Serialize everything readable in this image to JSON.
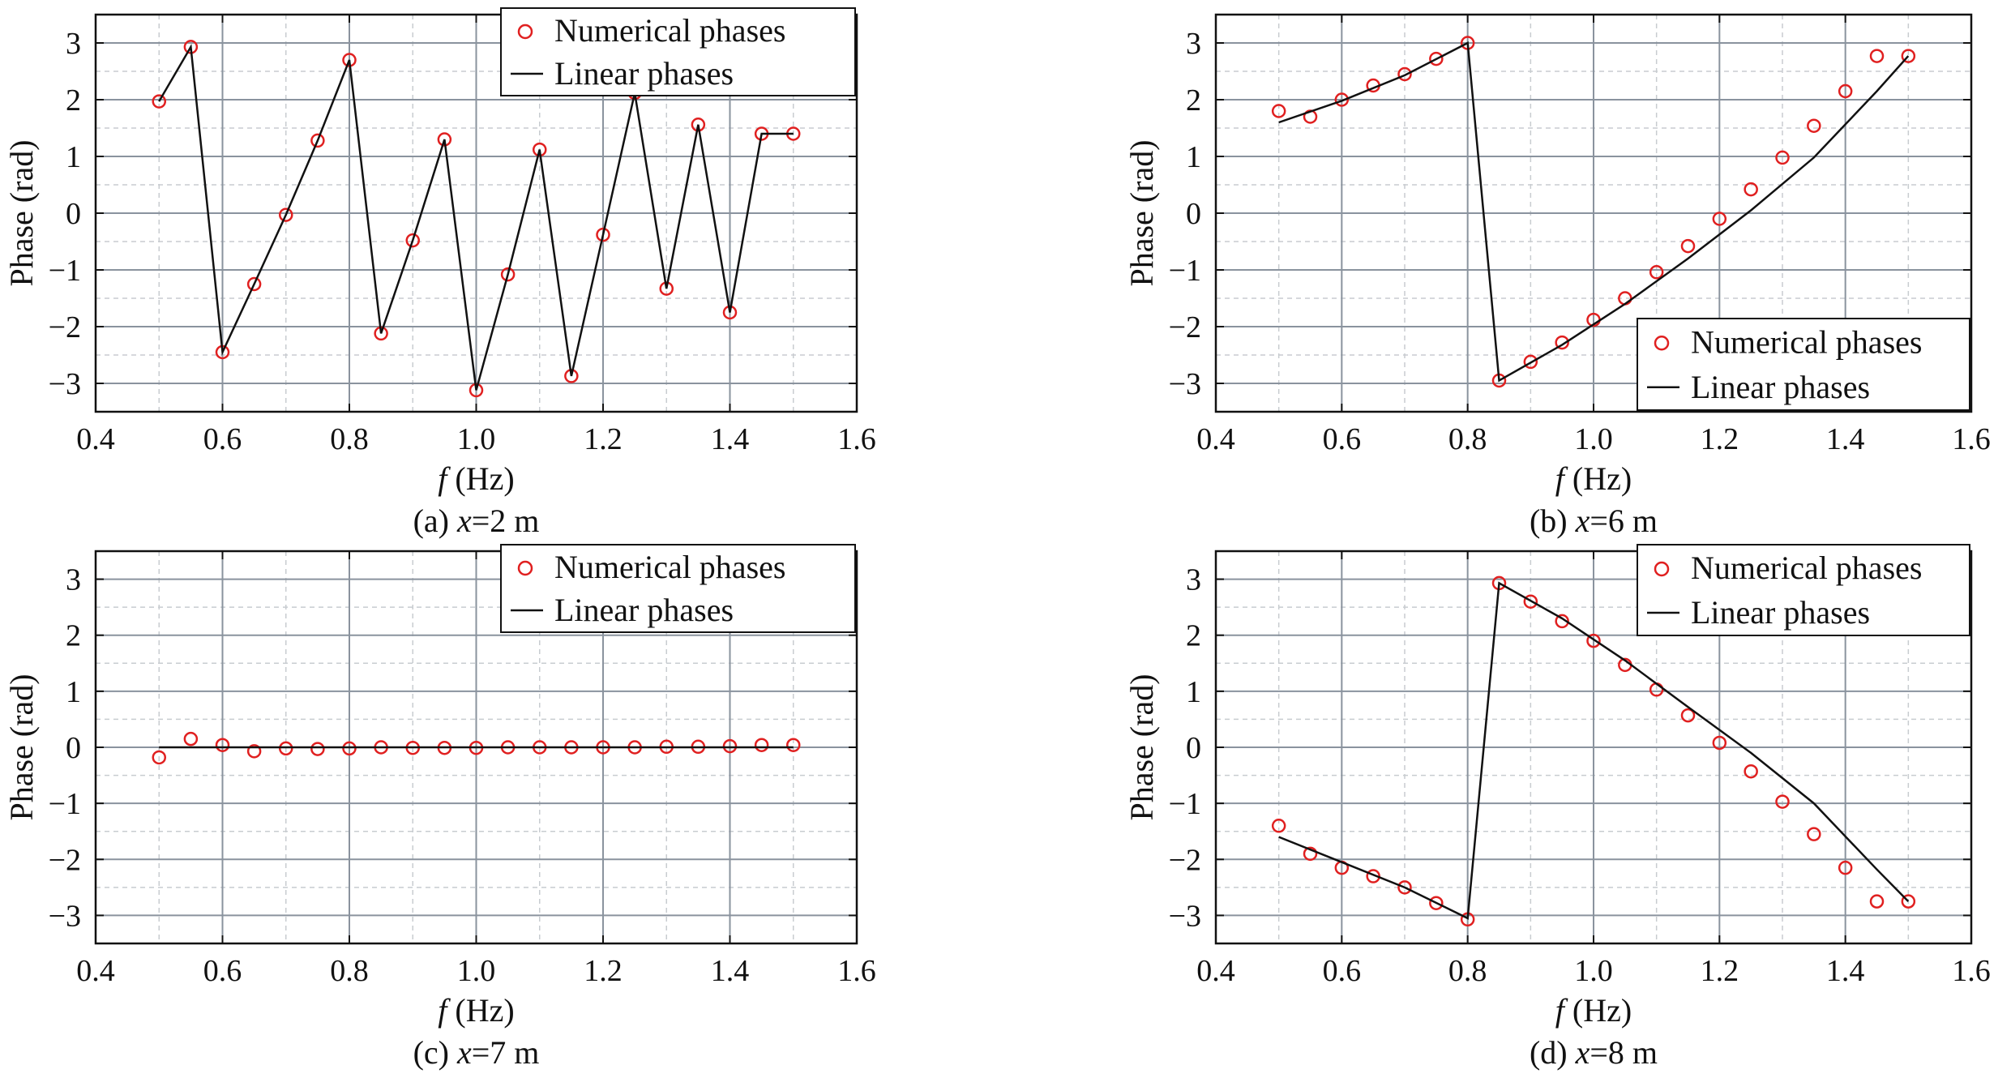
{
  "chart_data": [
    {
      "type": "line",
      "caption_prefix": "(a) ",
      "caption_var": "x",
      "caption_rest": "=2 m",
      "xlabel_var": "f",
      "xlabel_unit": " (Hz)",
      "ylabel": "Phase (rad)",
      "xlim": [
        0.4,
        1.6
      ],
      "ylim": [
        -3.5,
        3.5
      ],
      "xticks": [
        "0.4",
        "0.6",
        "0.8",
        "1.0",
        "1.2",
        "1.4",
        "1.6"
      ],
      "yticks": [
        "-3",
        "-2",
        "-1",
        "0",
        "1",
        "2",
        "3"
      ],
      "legend_position": "top-right",
      "legend": [
        "Numerical phases",
        "Linear phases"
      ],
      "series": [
        {
          "name": "Numerical phases",
          "marker": "circle",
          "color": "#e02020",
          "x": [
            0.5,
            0.55,
            0.6,
            0.65,
            0.7,
            0.75,
            0.8,
            0.85,
            0.9,
            0.95,
            1.0,
            1.05,
            1.1,
            1.15,
            1.2,
            1.25,
            1.3,
            1.35,
            1.4,
            1.45,
            1.5
          ],
          "y": [
            1.97,
            2.93,
            -2.45,
            -1.25,
            -0.03,
            1.28,
            2.7,
            -2.12,
            -0.48,
            1.3,
            -3.12,
            -1.08,
            1.12,
            -2.87,
            -0.38,
            2.12,
            -1.33,
            1.56,
            -1.75,
            1.4,
            1.4
          ]
        },
        {
          "name": "Linear phases",
          "color": "#111111",
          "x": [
            0.5,
            0.55,
            0.6,
            0.65,
            0.7,
            0.75,
            0.8,
            0.85,
            0.9,
            0.95,
            1.0,
            1.05,
            1.1,
            1.15,
            1.2,
            1.25,
            1.3,
            1.35,
            1.4,
            1.45,
            1.5
          ],
          "y": [
            1.97,
            2.93,
            -2.45,
            -1.25,
            -0.03,
            1.28,
            2.7,
            -2.12,
            -0.48,
            1.3,
            -3.12,
            -1.08,
            1.12,
            -2.87,
            -0.38,
            2.12,
            -1.33,
            1.56,
            -1.75,
            1.4,
            1.4
          ]
        }
      ]
    },
    {
      "type": "line",
      "caption_prefix": "(b) ",
      "caption_var": "x",
      "caption_rest": "=6 m",
      "xlabel_var": "f",
      "xlabel_unit": " (Hz)",
      "ylabel": "Phase (rad)",
      "xlim": [
        0.4,
        1.6
      ],
      "ylim": [
        -3.5,
        3.5
      ],
      "xticks": [
        "0.4",
        "0.6",
        "0.8",
        "1.0",
        "1.2",
        "1.4",
        "1.6"
      ],
      "yticks": [
        "-3",
        "-2",
        "-1",
        "0",
        "1",
        "2",
        "3"
      ],
      "legend_position": "bottom-right",
      "legend": [
        "Numerical phases",
        "Linear phases"
      ],
      "series": [
        {
          "name": "Numerical phases",
          "marker": "circle",
          "color": "#e02020",
          "x": [
            0.5,
            0.55,
            0.6,
            0.65,
            0.7,
            0.75,
            0.8,
            0.85,
            0.9,
            0.95,
            1.0,
            1.05,
            1.1,
            1.15,
            1.2,
            1.25,
            1.3,
            1.35,
            1.4,
            1.45,
            1.5
          ],
          "y": [
            1.8,
            1.7,
            2.0,
            2.25,
            2.45,
            2.72,
            3.0,
            -2.95,
            -2.62,
            -2.28,
            -1.88,
            -1.5,
            -1.04,
            -0.58,
            -0.1,
            0.42,
            0.98,
            1.54,
            2.15,
            2.77,
            2.77
          ]
        },
        {
          "name": "Linear phases",
          "color": "#111111",
          "x": [
            0.5,
            0.6,
            0.7,
            0.8,
            0.8,
            0.85,
            0.95,
            1.05,
            1.15,
            1.25,
            1.35,
            1.45,
            1.5
          ],
          "y": [
            1.6,
            1.98,
            2.43,
            3.0,
            3.0,
            -2.95,
            -2.32,
            -1.6,
            -0.8,
            0.05,
            0.98,
            2.15,
            2.77
          ]
        }
      ]
    },
    {
      "type": "line",
      "caption_prefix": "(c) ",
      "caption_var": "x",
      "caption_rest": "=7 m",
      "xlabel_var": "f",
      "xlabel_unit": " (Hz)",
      "ylabel": "Phase (rad)",
      "xlim": [
        0.4,
        1.6
      ],
      "ylim": [
        -3.5,
        3.5
      ],
      "xticks": [
        "0.4",
        "0.6",
        "0.8",
        "1.0",
        "1.2",
        "1.4",
        "1.6"
      ],
      "yticks": [
        "-3",
        "-2",
        "-1",
        "0",
        "1",
        "2",
        "3"
      ],
      "legend_position": "top-right",
      "legend": [
        "Numerical phases",
        "Linear phases"
      ],
      "series": [
        {
          "name": "Numerical phases",
          "marker": "circle",
          "color": "#e02020",
          "x": [
            0.5,
            0.55,
            0.6,
            0.65,
            0.7,
            0.75,
            0.8,
            0.85,
            0.9,
            0.95,
            1.0,
            1.05,
            1.1,
            1.15,
            1.2,
            1.25,
            1.3,
            1.35,
            1.4,
            1.45,
            1.5
          ],
          "y": [
            -0.18,
            0.15,
            0.04,
            -0.07,
            -0.02,
            -0.03,
            -0.02,
            0.0,
            -0.01,
            -0.01,
            -0.01,
            0.0,
            0.0,
            0.0,
            0.0,
            0.0,
            0.01,
            0.01,
            0.02,
            0.04,
            0.04
          ]
        },
        {
          "name": "Linear phases",
          "color": "#111111",
          "x": [
            0.5,
            1.5
          ],
          "y": [
            0.0,
            0.0
          ]
        }
      ]
    },
    {
      "type": "line",
      "caption_prefix": "(d) ",
      "caption_var": "x",
      "caption_rest": "=8 m",
      "xlabel_var": "f",
      "xlabel_unit": " (Hz)",
      "ylabel": "Phase (rad)",
      "xlim": [
        0.4,
        1.6
      ],
      "ylim": [
        -3.5,
        3.5
      ],
      "xticks": [
        "0.4",
        "0.6",
        "0.8",
        "1.0",
        "1.2",
        "1.4",
        "1.6"
      ],
      "yticks": [
        "-3",
        "-2",
        "-1",
        "0",
        "1",
        "2",
        "3"
      ],
      "legend_position": "top-right",
      "legend": [
        "Numerical phases",
        "Linear phases"
      ],
      "series": [
        {
          "name": "Numerical phases",
          "marker": "circle",
          "color": "#e02020",
          "x": [
            0.5,
            0.55,
            0.6,
            0.65,
            0.7,
            0.75,
            0.8,
            0.85,
            0.9,
            0.95,
            1.0,
            1.05,
            1.1,
            1.15,
            1.2,
            1.25,
            1.3,
            1.35,
            1.4,
            1.45,
            1.5
          ],
          "y": [
            -1.4,
            -1.9,
            -2.15,
            -2.3,
            -2.5,
            -2.78,
            -3.07,
            2.93,
            2.6,
            2.25,
            1.9,
            1.47,
            1.03,
            0.57,
            0.08,
            -0.43,
            -0.97,
            -1.55,
            -2.15,
            -2.75,
            -2.75
          ]
        },
        {
          "name": "Linear phases",
          "color": "#111111",
          "x": [
            0.5,
            0.6,
            0.7,
            0.8,
            0.8,
            0.85,
            0.95,
            1.05,
            1.15,
            1.25,
            1.35,
            1.45,
            1.5
          ],
          "y": [
            -1.6,
            -2.05,
            -2.5,
            -3.05,
            -3.05,
            2.93,
            2.3,
            1.55,
            0.72,
            -0.1,
            -1.0,
            -2.18,
            -2.75
          ]
        }
      ]
    }
  ]
}
